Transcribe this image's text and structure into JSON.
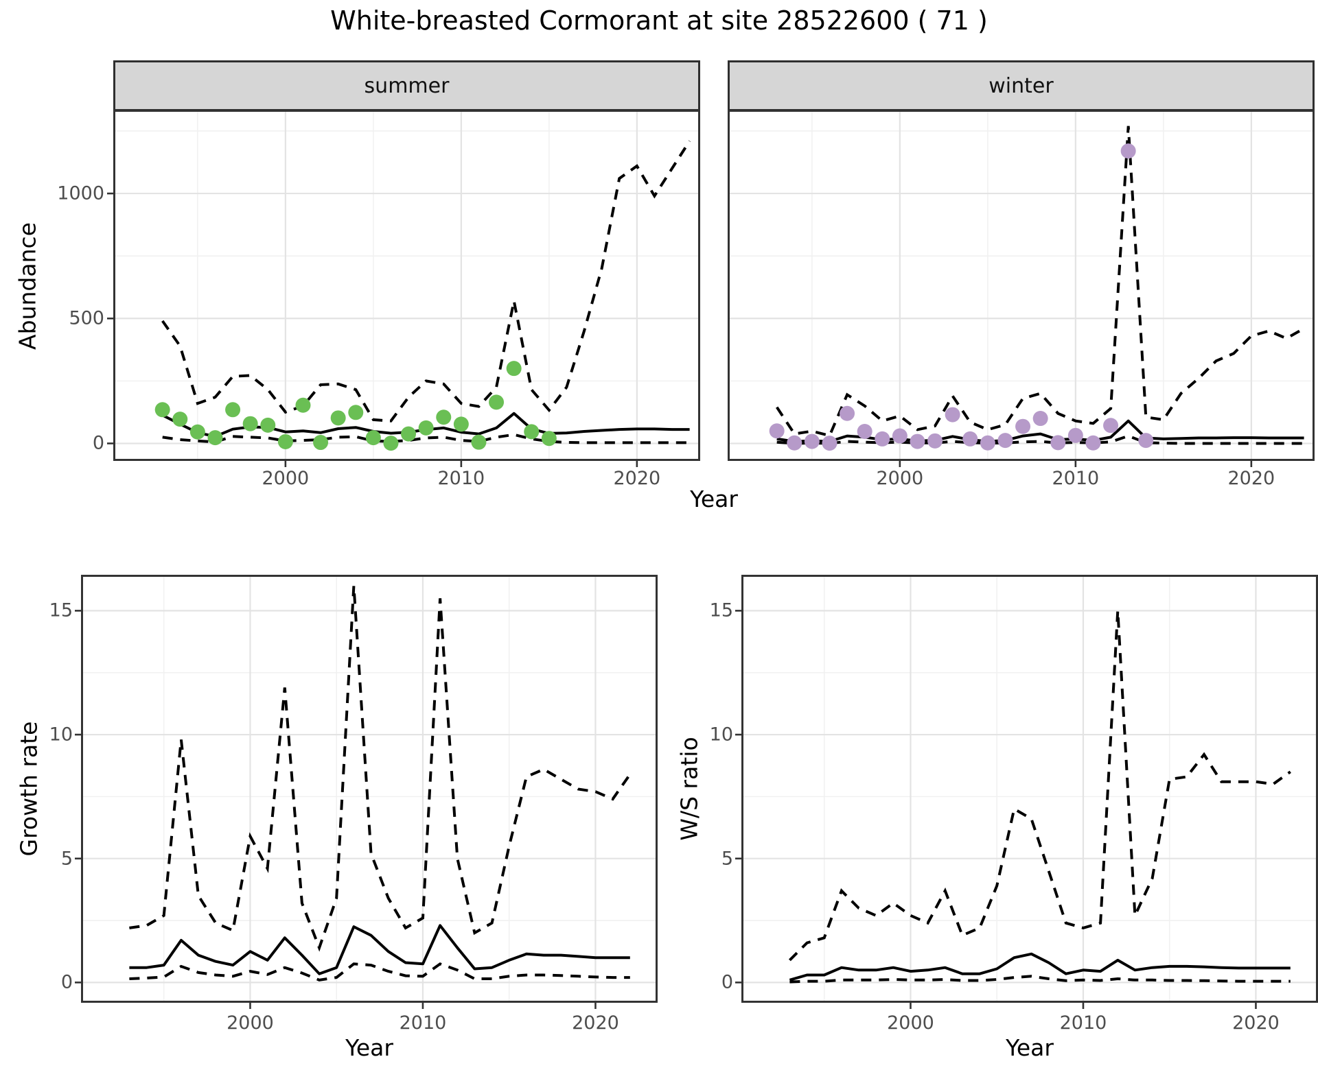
{
  "title": "White-breasted Cormorant at site 28522600 ( 71 )",
  "colors": {
    "summer_points": "#6abf54",
    "winter_points": "#b69ac9",
    "line": "#000000",
    "grid_major": "#e3e3e3",
    "grid_minor": "#f1f1f1",
    "strip_bg": "#d6d6d6",
    "panel_border": "#333333",
    "axis_text": "#4d4d4d"
  },
  "labels": {
    "facet_summer": "summer",
    "facet_winter": "winter",
    "abundance": "Abundance",
    "growth_rate": "Growth rate",
    "ws_ratio": "W/S ratio",
    "year_top": "Year",
    "year_bottom_left": "Year",
    "year_bottom_right": "Year"
  },
  "chart_data": [
    {
      "type": "line",
      "facet": "summer",
      "xlabel": "Year",
      "ylabel": "Abundance",
      "xlim": [
        1990.2,
        2023.6
      ],
      "ylim": [
        -70,
        1335
      ],
      "xticks": [
        2000,
        2010,
        2020
      ],
      "xminor": [
        1995,
        2005,
        2015
      ],
      "yticks": [
        0,
        500,
        1000
      ],
      "yminor": [
        250,
        750,
        1250
      ],
      "legend": "none",
      "grid": true,
      "x_fit": [
        1993,
        1994,
        1995,
        1996,
        1997,
        1998,
        1999,
        2000,
        2001,
        2002,
        2003,
        2004,
        2005,
        2006,
        2007,
        2008,
        2009,
        2010,
        2011,
        2012,
        2013,
        2014,
        2015,
        2016,
        2017,
        2018,
        2019,
        2020,
        2021,
        2022,
        2023
      ],
      "median": [
        113,
        77,
        43,
        28,
        57,
        66,
        64,
        46,
        50,
        43,
        59,
        64,
        48,
        41,
        45,
        55,
        62,
        45,
        38,
        62,
        120,
        58,
        40,
        42,
        48,
        52,
        56,
        58,
        58,
        56,
        56
      ],
      "upper": [
        490,
        390,
        160,
        185,
        268,
        272,
        215,
        125,
        150,
        235,
        238,
        215,
        95,
        90,
        185,
        250,
        238,
        160,
        148,
        225,
        570,
        215,
        133,
        225,
        450,
        700,
        1060,
        1110,
        990,
        1100,
        1210
      ],
      "lower": [
        25,
        15,
        10,
        6,
        28,
        25,
        22,
        10,
        12,
        15,
        25,
        27,
        10,
        8,
        12,
        22,
        25,
        12,
        8,
        25,
        35,
        18,
        8,
        4,
        3,
        3,
        3,
        3,
        3,
        3,
        3
      ],
      "obs_x": [
        1993,
        1994,
        1995,
        1996,
        1997,
        1998,
        1999,
        2000,
        2001,
        2002,
        2003,
        2004,
        2005,
        2006,
        2007,
        2008,
        2009,
        2010,
        2011,
        2012,
        2013,
        2014,
        2015
      ],
      "obs_y": [
        135,
        97,
        46,
        23,
        135,
        79,
        73,
        7,
        153,
        4,
        102,
        124,
        23,
        1,
        38,
        62,
        105,
        77,
        5,
        165,
        300,
        47,
        20
      ],
      "point_color_key": "summer_points"
    },
    {
      "type": "line",
      "facet": "winter",
      "xlabel": "Year",
      "ylabel": "Abundance",
      "xlim": [
        1990.2,
        2023.6
      ],
      "ylim": [
        -70,
        1335
      ],
      "xticks": [
        2000,
        2010,
        2020
      ],
      "xminor": [
        1995,
        2005,
        2015
      ],
      "yticks": [
        0,
        500,
        1000
      ],
      "yminor": [
        250,
        750,
        1250
      ],
      "legend": "none",
      "grid": true,
      "x_fit": [
        1993,
        1994,
        1995,
        1996,
        1997,
        1998,
        1999,
        2000,
        2001,
        2002,
        2003,
        2004,
        2005,
        2006,
        2007,
        2008,
        2009,
        2010,
        2011,
        2012,
        2013,
        2014,
        2015,
        2016,
        2017,
        2018,
        2019,
        2020,
        2021,
        2022,
        2023
      ],
      "median": [
        18,
        8,
        10,
        8,
        30,
        25,
        15,
        18,
        10,
        12,
        28,
        15,
        8,
        12,
        30,
        38,
        15,
        18,
        12,
        25,
        90,
        22,
        18,
        20,
        22,
        22,
        23,
        23,
        22,
        22,
        22
      ],
      "upper": [
        145,
        38,
        49,
        31,
        195,
        150,
        90,
        110,
        55,
        70,
        190,
        85,
        55,
        75,
        180,
        200,
        120,
        90,
        80,
        140,
        1270,
        105,
        95,
        200,
        260,
        330,
        360,
        430,
        450,
        420,
        460
      ],
      "lower": [
        5,
        0,
        2,
        0,
        8,
        5,
        3,
        5,
        2,
        2,
        8,
        3,
        1,
        2,
        6,
        8,
        2,
        4,
        2,
        6,
        30,
        3,
        1,
        0,
        0,
        0,
        0,
        0,
        0,
        0,
        0
      ],
      "obs_x": [
        1993,
        1994,
        1995,
        1996,
        1997,
        1998,
        1999,
        2000,
        2001,
        2002,
        2003,
        2004,
        2005,
        2006,
        2007,
        2008,
        2009,
        2010,
        2011,
        2012,
        2013,
        2014
      ],
      "obs_y": [
        50,
        2,
        8,
        1,
        120,
        48,
        18,
        30,
        8,
        10,
        115,
        18,
        2,
        12,
        68,
        100,
        3,
        32,
        2,
        72,
        1170,
        12
      ],
      "point_color_key": "winter_points"
    },
    {
      "type": "line",
      "facet": "",
      "xlabel": "Year",
      "ylabel": "Growth rate",
      "xlim": [
        1990.2,
        2023.6
      ],
      "ylim": [
        -0.82,
        16.45
      ],
      "xticks": [
        2000,
        2010,
        2020
      ],
      "xminor": [
        1995,
        2005,
        2015
      ],
      "yticks": [
        0,
        5,
        10,
        15
      ],
      "yminor": [
        2.5,
        7.5,
        12.5
      ],
      "legend": "none",
      "grid": true,
      "x_fit": [
        1993,
        1994,
        1995,
        1996,
        1997,
        1998,
        1999,
        2000,
        2001,
        2002,
        2003,
        2004,
        2005,
        2006,
        2007,
        2008,
        2009,
        2010,
        2011,
        2012,
        2013,
        2014,
        2015,
        2016,
        2017,
        2018,
        2019,
        2020,
        2021,
        2022
      ],
      "median": [
        0.6,
        0.6,
        0.7,
        1.7,
        1.1,
        0.85,
        0.7,
        1.25,
        0.9,
        1.8,
        1.1,
        0.35,
        0.6,
        2.25,
        1.9,
        1.25,
        0.8,
        0.75,
        2.3,
        1.4,
        0.55,
        0.6,
        0.9,
        1.15,
        1.1,
        1.1,
        1.05,
        1.0,
        1.0,
        1.0
      ],
      "upper": [
        2.2,
        2.3,
        2.7,
        9.8,
        3.5,
        2.4,
        2.1,
        5.9,
        4.6,
        11.9,
        3.2,
        1.4,
        3.4,
        16.0,
        5.2,
        3.4,
        2.2,
        2.6,
        15.5,
        5.0,
        2.0,
        2.4,
        5.5,
        8.3,
        8.6,
        8.2,
        7.8,
        7.7,
        7.4,
        8.4
      ],
      "lower": [
        0.15,
        0.18,
        0.22,
        0.65,
        0.4,
        0.3,
        0.25,
        0.45,
        0.32,
        0.6,
        0.38,
        0.1,
        0.2,
        0.75,
        0.7,
        0.45,
        0.27,
        0.25,
        0.75,
        0.5,
        0.15,
        0.15,
        0.25,
        0.3,
        0.3,
        0.28,
        0.25,
        0.22,
        0.2,
        0.2
      ],
      "obs_x": [],
      "obs_y": [],
      "point_color_key": "line"
    },
    {
      "type": "line",
      "facet": "",
      "xlabel": "Year",
      "ylabel": "W/S ratio",
      "xlim": [
        1990.2,
        2023.6
      ],
      "ylim": [
        -0.82,
        16.45
      ],
      "xticks": [
        2000,
        2010,
        2020
      ],
      "xminor": [
        1995,
        2005,
        2015
      ],
      "yticks": [
        0,
        5,
        10,
        15
      ],
      "yminor": [
        2.5,
        7.5,
        12.5
      ],
      "legend": "none",
      "grid": true,
      "x_fit": [
        1993,
        1994,
        1995,
        1996,
        1997,
        1998,
        1999,
        2000,
        2001,
        2002,
        2003,
        2004,
        2005,
        2006,
        2007,
        2008,
        2009,
        2010,
        2011,
        2012,
        2013,
        2014,
        2015,
        2016,
        2017,
        2018,
        2019,
        2020,
        2021,
        2022
      ],
      "median": [
        0.1,
        0.3,
        0.3,
        0.6,
        0.5,
        0.5,
        0.6,
        0.45,
        0.5,
        0.6,
        0.35,
        0.35,
        0.55,
        1.0,
        1.15,
        0.8,
        0.35,
        0.5,
        0.45,
        0.9,
        0.5,
        0.6,
        0.65,
        0.65,
        0.63,
        0.6,
        0.58,
        0.58,
        0.58,
        0.58
      ],
      "upper": [
        0.9,
        1.6,
        1.8,
        3.7,
        3.0,
        2.7,
        3.2,
        2.7,
        2.4,
        3.7,
        1.9,
        2.2,
        3.9,
        7.0,
        6.6,
        4.5,
        2.4,
        2.2,
        2.4,
        15.0,
        2.7,
        4.2,
        8.2,
        8.3,
        9.2,
        8.1,
        8.1,
        8.1,
        8.0,
        8.5
      ],
      "lower": [
        0.02,
        0.05,
        0.05,
        0.1,
        0.1,
        0.1,
        0.12,
        0.1,
        0.1,
        0.12,
        0.08,
        0.08,
        0.12,
        0.2,
        0.25,
        0.15,
        0.07,
        0.1,
        0.08,
        0.15,
        0.1,
        0.1,
        0.08,
        0.08,
        0.07,
        0.06,
        0.05,
        0.05,
        0.05,
        0.05
      ],
      "obs_x": [],
      "obs_y": [],
      "point_color_key": "line"
    }
  ]
}
